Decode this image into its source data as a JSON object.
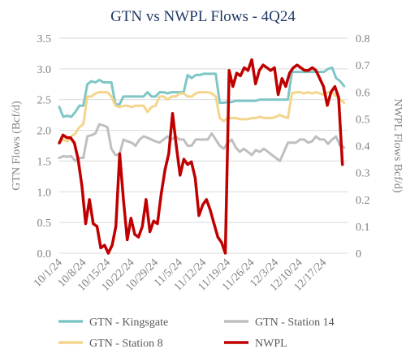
{
  "chart_data": {
    "type": "line",
    "title": "GTN vs NWPL Flows - 4Q24",
    "ylabel": "GTN Flows (Bcf/d)",
    "y2label": "NWPL Flows Bcf/d)",
    "ylim": [
      0,
      3.5
    ],
    "y2lim": [
      0,
      0.8
    ],
    "yticks": [
      "0.0",
      "0.5",
      "1.0",
      "1.5",
      "2.0",
      "2.5",
      "3.0",
      "3.5"
    ],
    "y2ticks": [
      "0",
      "0.1",
      "0.2",
      "0.3",
      "0.4",
      "0.5",
      "0.6",
      "0.7",
      "0.8"
    ],
    "grid": true,
    "legend_position": "bottom",
    "start_date": "10/1/24",
    "xtick_labels": [
      "10/1/24",
      "10/8/24",
      "10/15/24",
      "10/22/24",
      "10/29/24",
      "11/5/24",
      "11/12/24",
      "11/19/24",
      "11/26/24",
      "12/3/24",
      "12/10/24",
      "12/17/24"
    ],
    "series": [
      {
        "name": "GTN - Kingsgate",
        "axis": "left",
        "color": "#7fc6c6",
        "values": [
          2.38,
          2.22,
          2.24,
          2.22,
          2.3,
          2.4,
          2.4,
          2.75,
          2.8,
          2.78,
          2.82,
          2.78,
          2.78,
          2.78,
          2.42,
          2.42,
          2.55,
          2.55,
          2.55,
          2.55,
          2.55,
          2.55,
          2.62,
          2.55,
          2.55,
          2.62,
          2.62,
          2.6,
          2.62,
          2.62,
          2.62,
          2.62,
          2.9,
          2.85,
          2.9,
          2.9,
          2.92,
          2.92,
          2.92,
          2.92,
          2.45,
          2.45,
          2.46,
          2.46,
          2.48,
          2.48,
          2.48,
          2.48,
          2.48,
          2.48,
          2.5,
          2.5,
          2.5,
          2.5,
          2.5,
          2.5,
          2.5,
          2.5,
          2.95,
          2.95,
          2.95,
          2.95,
          2.95,
          2.95,
          2.95,
          2.95,
          2.95,
          3.0,
          3.02,
          2.85,
          2.8,
          2.72
        ]
      },
      {
        "name": "GTN - Station 14",
        "axis": "left",
        "color": "#bfbfbf",
        "values": [
          1.55,
          1.58,
          1.57,
          1.58,
          1.5,
          1.55,
          1.55,
          1.9,
          1.92,
          1.95,
          2.1,
          2.08,
          2.05,
          1.7,
          1.6,
          1.6,
          1.85,
          1.82,
          1.8,
          1.75,
          1.85,
          1.9,
          1.88,
          1.85,
          1.82,
          1.8,
          1.85,
          1.9,
          1.85,
          1.9,
          1.85,
          1.85,
          1.75,
          1.75,
          1.85,
          1.85,
          1.85,
          1.85,
          1.95,
          1.85,
          1.75,
          1.7,
          1.8,
          1.85,
          1.72,
          1.65,
          1.7,
          1.65,
          1.6,
          1.68,
          1.65,
          1.7,
          1.65,
          1.6,
          1.55,
          1.5,
          1.65,
          1.8,
          1.8,
          1.8,
          1.85,
          1.85,
          1.8,
          1.82,
          1.9,
          1.85,
          1.85,
          1.78,
          1.85,
          1.9,
          1.75,
          1.72
        ]
      },
      {
        "name": "GTN - Station 8",
        "axis": "left",
        "color": "#f4d58c",
        "values": [
          1.8,
          1.85,
          1.82,
          1.9,
          1.95,
          2.05,
          2.1,
          2.55,
          2.55,
          2.6,
          2.62,
          2.62,
          2.62,
          2.55,
          2.4,
          2.38,
          2.4,
          2.4,
          2.38,
          2.4,
          2.4,
          2.4,
          2.3,
          2.38,
          2.4,
          2.55,
          2.55,
          2.5,
          2.55,
          2.55,
          2.6,
          2.6,
          2.55,
          2.55,
          2.6,
          2.62,
          2.62,
          2.62,
          2.6,
          2.55,
          2.2,
          2.15,
          2.2,
          2.2,
          2.2,
          2.18,
          2.18,
          2.18,
          2.2,
          2.2,
          2.22,
          2.2,
          2.2,
          2.2,
          2.22,
          2.25,
          2.22,
          2.2,
          2.6,
          2.62,
          2.62,
          2.6,
          2.62,
          2.6,
          2.62,
          2.6,
          2.58,
          2.62,
          2.62,
          2.55,
          2.5,
          2.45
        ]
      },
      {
        "name": "NWPL",
        "axis": "right",
        "color": "#c00000",
        "values": [
          0.41,
          0.44,
          0.43,
          0.43,
          0.41,
          0.35,
          0.25,
          0.11,
          0.2,
          0.11,
          0.1,
          0.02,
          0.03,
          0.0,
          0.03,
          0.1,
          0.37,
          0.2,
          0.05,
          0.13,
          0.07,
          0.06,
          0.1,
          0.2,
          0.08,
          0.12,
          0.11,
          0.22,
          0.31,
          0.37,
          0.52,
          0.4,
          0.29,
          0.35,
          0.33,
          0.34,
          0.28,
          0.14,
          0.18,
          0.2,
          0.16,
          0.11,
          0.06,
          0.04,
          0.0,
          0.68,
          0.62,
          0.67,
          0.66,
          0.69,
          0.68,
          0.72,
          0.63,
          0.68,
          0.7,
          0.69,
          0.68,
          0.69,
          0.59,
          0.65,
          0.62,
          0.67,
          0.69,
          0.7,
          0.69,
          0.68,
          0.68,
          0.69,
          0.68,
          0.65,
          0.62,
          0.55,
          0.6,
          0.62,
          0.58,
          0.33
        ]
      }
    ]
  }
}
